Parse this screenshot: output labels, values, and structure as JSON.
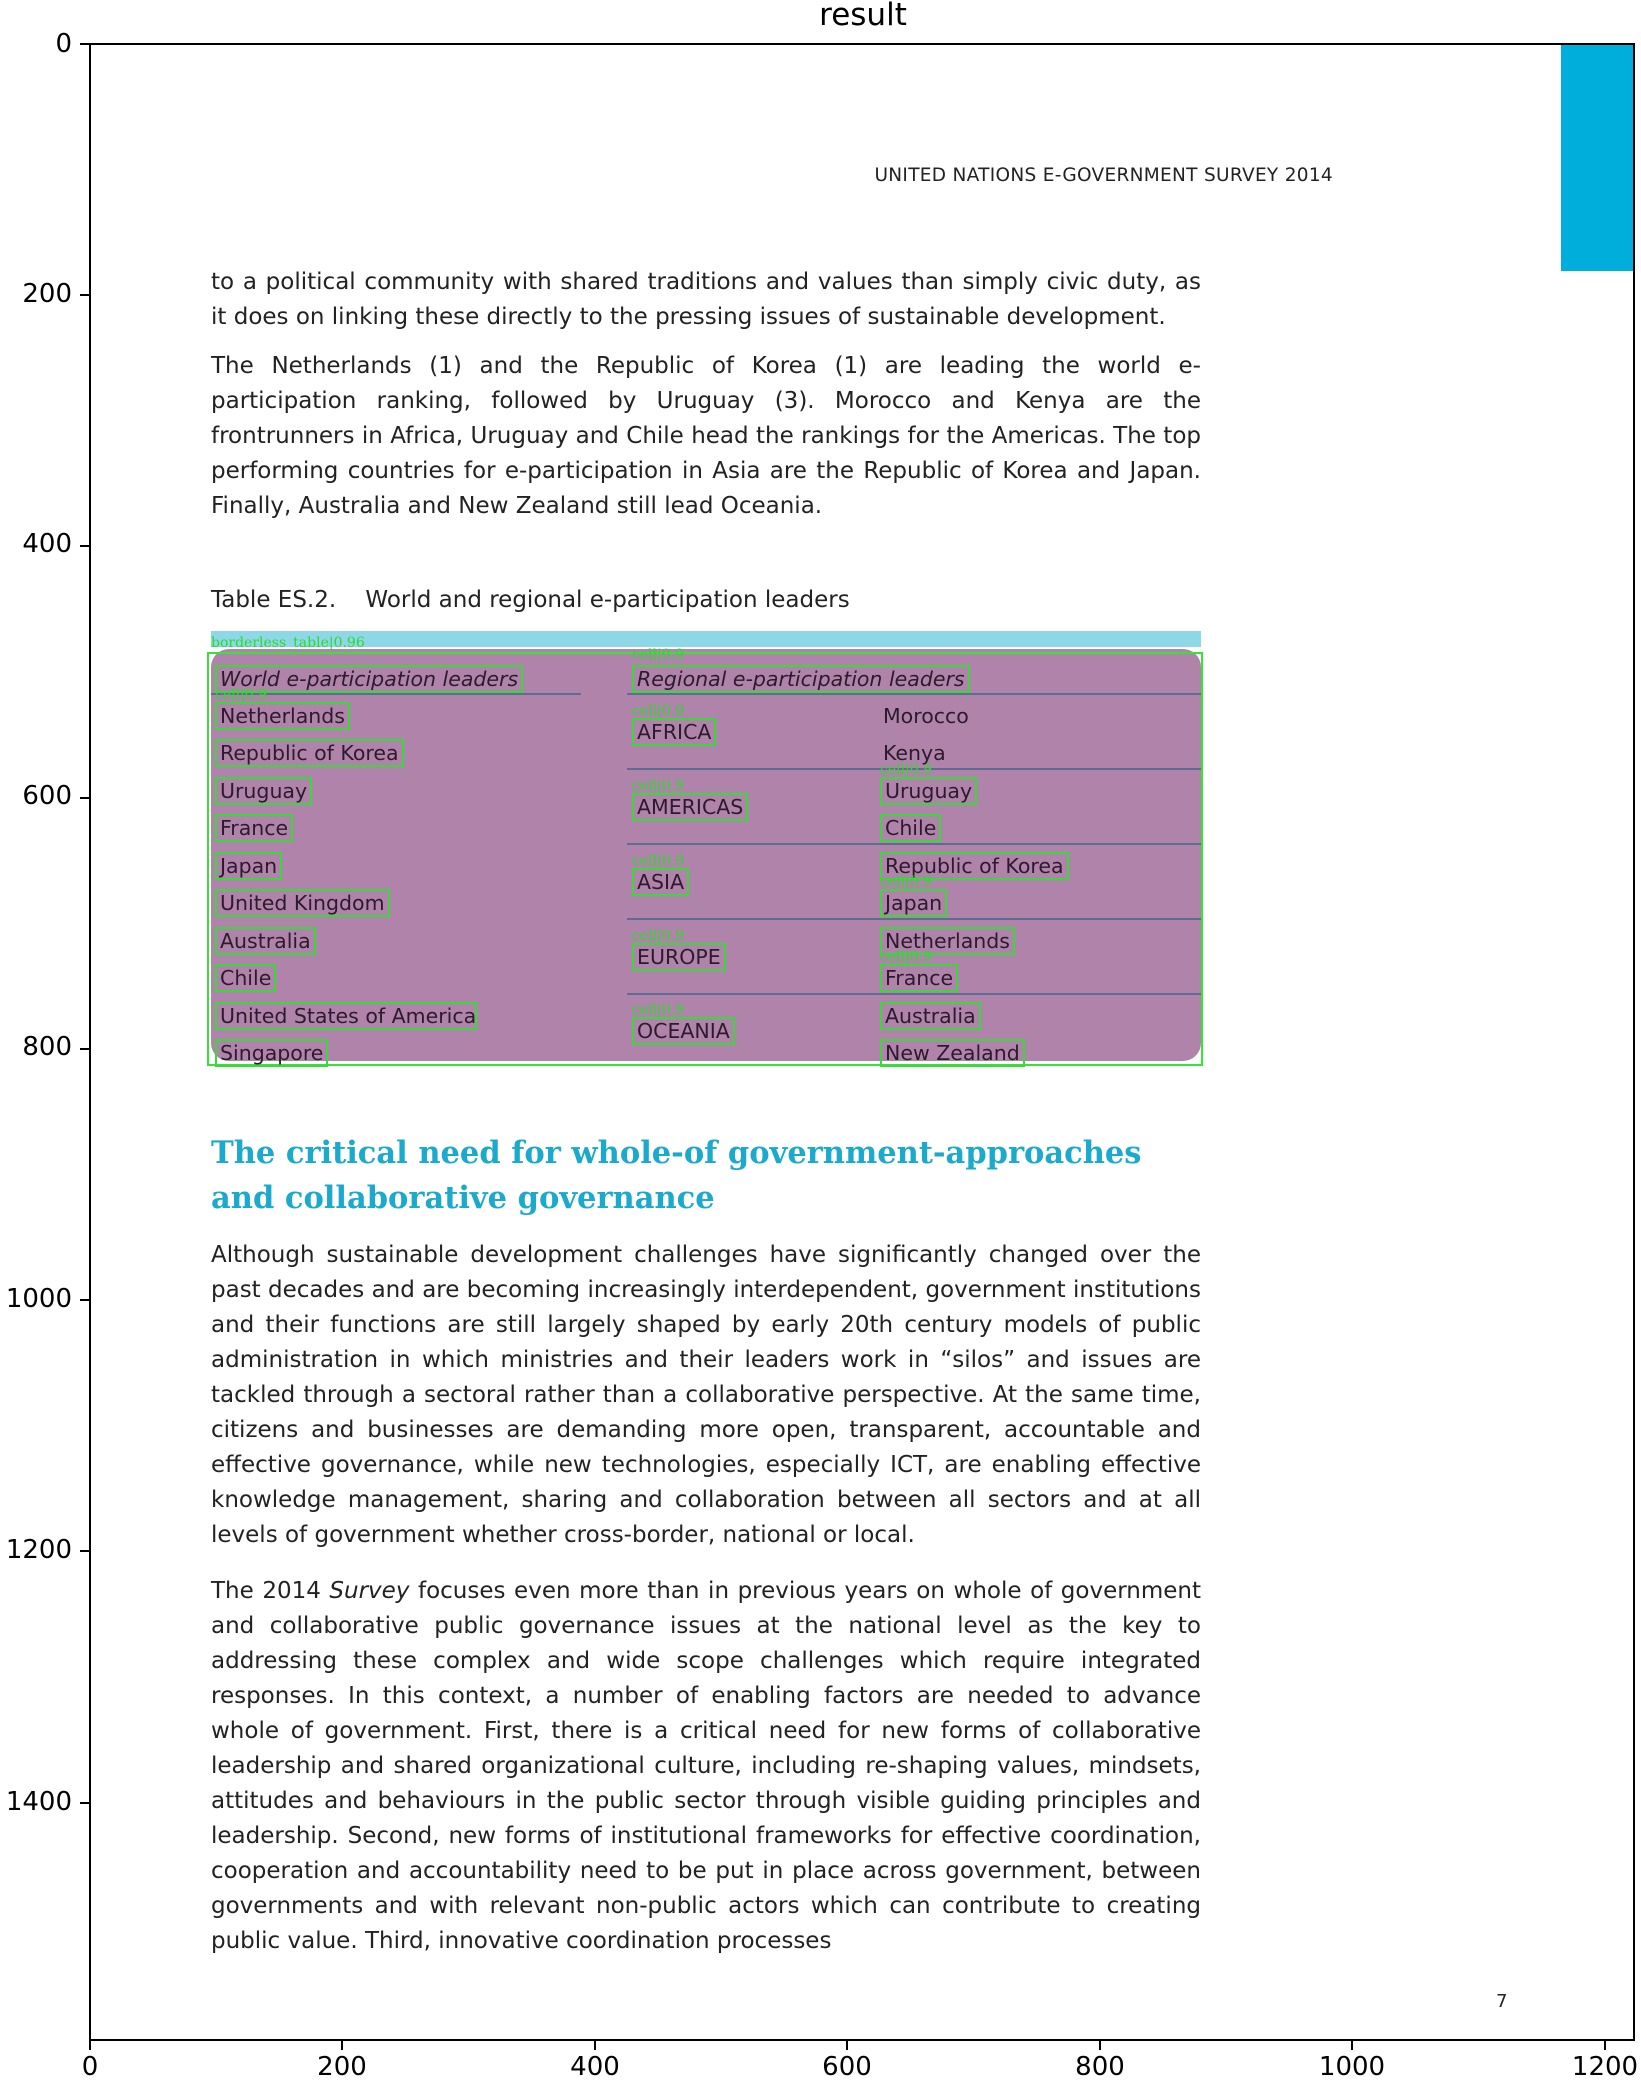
{
  "figure": {
    "title": "result",
    "y_ticks": [
      "0",
      "200",
      "400",
      "600",
      "800",
      "1000",
      "1200",
      "1400"
    ],
    "x_ticks": [
      "0",
      "200",
      "400",
      "600",
      "800",
      "1000",
      "1200"
    ]
  },
  "page": {
    "running_header": "UNITED NATIONS E-GOVERNMENT SURVEY 2014",
    "intro_paragraph": "to a political community with shared traditions and values than simply civic duty, as it does on linking these directly to the pressing issues of sustainable development.",
    "leaders_paragraph": "The Netherlands (1) and the Republic of Korea (1) are leading the world e-participation ranking, followed by Uruguay (3). Morocco and Kenya are the frontrunners in Africa, Uruguay and Chile head the rankings for the Americas. The top performing countries for e-participation in Asia are the Republic of Korea and Japan. Finally, Australia and New Zealand still lead Oceania.",
    "table_caption": "Table ES.2.    World and regional e-participation leaders",
    "section_heading": "The critical need for whole-of government-approaches and collaborative governance",
    "body_paragraph_1": "Although sustainable development challenges have significantly changed over the past decades and are becoming increasingly interdependent, government institutions and their functions are still largely shaped by early 20th century models of public administration in which ministries and their leaders work in “silos” and issues are tackled through a sectoral rather than a collaborative perspective. At the same time, citizens and businesses are demanding more open, transparent, accountable and effective governance, while new technologies, especially ICT, are enabling effective knowledge management, sharing and collaboration between all sectors and at all levels of government whether cross-border, national or local.",
    "body_paragraph_2_pre": "The 2014 ",
    "body_paragraph_2_em": "Survey",
    "body_paragraph_2_post": " focuses even more than in previous years on whole of government and collaborative public governance issues at the national level as the key to addressing these complex and wide scope challenges which require integrated responses. In this context, a number of enabling factors are needed to advance whole of government. First, there is a critical need for new forms of collaborative leadership and shared organizational culture, including re-shaping values, mindsets, attitudes and behaviours in the public sector through visible guiding principles and leadership. Second, new forms of institutional frameworks for effective coordination, cooperation and accountability need to be put in place across government, between governments and with relevant non-public actors which can contribute to creating public value. Third, innovative coordination processes",
    "page_number": "7"
  },
  "table": {
    "detection_label": "borderless_table|0.96",
    "world_header": "World e-participation leaders",
    "world_leaders": [
      "Netherlands",
      "Republic of Korea",
      "Uruguay",
      "France",
      "Japan",
      "United Kingdom",
      "Australia",
      "Chile",
      "United States of America",
      "Singapore"
    ],
    "regional_header": "Regional e-participation leaders",
    "regions": [
      {
        "name": "AFRICA",
        "leaders": [
          "Morocco",
          "Kenya"
        ]
      },
      {
        "name": "AMERICAS",
        "leaders": [
          "Uruguay",
          "Chile"
        ]
      },
      {
        "name": "ASIA",
        "leaders": [
          "Republic of Korea",
          "Japan"
        ]
      },
      {
        "name": "EUROPE",
        "leaders": [
          "Netherlands",
          "France"
        ]
      },
      {
        "name": "OCEANIA",
        "leaders": [
          "Australia",
          "New Zealand"
        ]
      }
    ],
    "cell_label": "cell|0.9"
  },
  "colors": {
    "accent_tab": "#00aedb",
    "heading": "#1ba9cc",
    "table_overlay": "#b083aa",
    "detection_box": "#34e534"
  }
}
